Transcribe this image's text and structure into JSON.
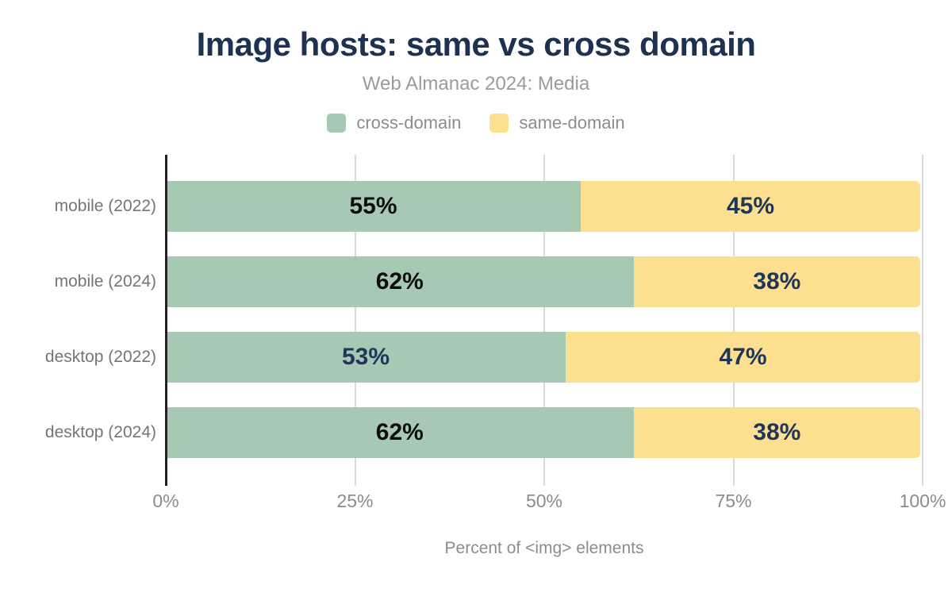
{
  "chart_data": {
    "type": "bar",
    "orientation": "horizontal",
    "stacked": true,
    "title": "Image hosts: same vs cross domain",
    "subtitle": "Web Almanac 2024: Media",
    "xlabel": "Percent of <img> elements",
    "xlim": [
      0,
      100
    ],
    "x_tick_labels": [
      "0%",
      "25%",
      "50%",
      "75%",
      "100%"
    ],
    "grid": true,
    "legend_position": "top",
    "categories": [
      "mobile (2022)",
      "mobile (2024)",
      "desktop (2022)",
      "desktop (2024)"
    ],
    "series": [
      {
        "name": "cross-domain",
        "color": "#a7c8b3",
        "values": [
          55,
          62,
          53,
          62
        ],
        "value_labels": [
          "55%",
          "62%",
          "53%",
          "62%"
        ],
        "label_colors": [
          "#0e0e0e",
          "#0e0e0e",
          "#20355a",
          "#0e0e0e"
        ]
      },
      {
        "name": "same-domain",
        "color": "#fce08f",
        "values": [
          45,
          38,
          47,
          38
        ],
        "value_labels": [
          "45%",
          "38%",
          "47%",
          "38%"
        ],
        "label_colors": [
          "#20355a",
          "#20355a",
          "#20355a",
          "#20355a"
        ]
      }
    ]
  },
  "colors": {
    "title": "#1e3151",
    "subtitle": "#9b9b9b",
    "axis_text": "#8c8c8c",
    "category_text": "#757575",
    "gridline": "#d9d9d9",
    "axis_line": "#212121",
    "value_black": "#0e0e0e",
    "value_navy": "#20355a"
  }
}
